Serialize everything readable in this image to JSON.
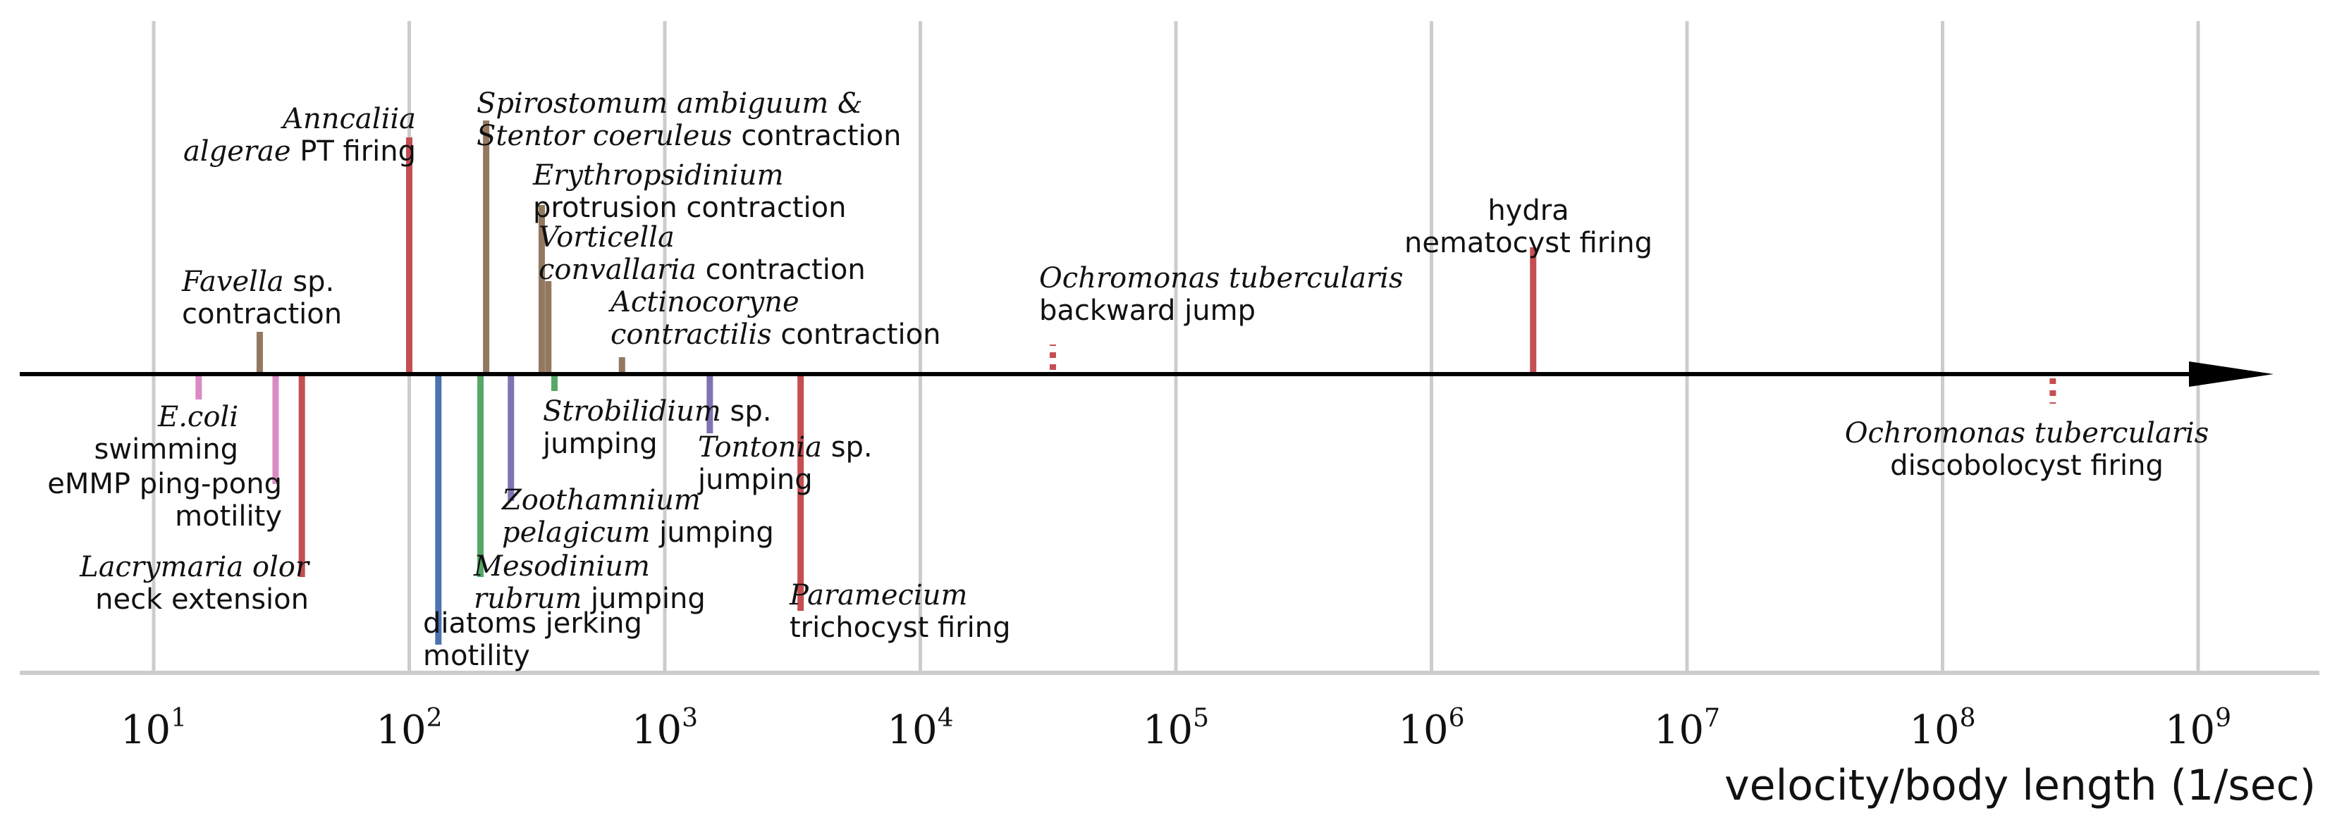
{
  "chart_data": {
    "type": "timeline",
    "scale": "log10",
    "xlim": [
      10,
      2000000000
    ],
    "xlabel": "velocity/body length (1/sec)",
    "ticks": [
      {
        "base": "10",
        "exp": "1",
        "value": 10
      },
      {
        "base": "10",
        "exp": "2",
        "value": 100
      },
      {
        "base": "10",
        "exp": "3",
        "value": 1000
      },
      {
        "base": "10",
        "exp": "4",
        "value": 10000
      },
      {
        "base": "10",
        "exp": "5",
        "value": 100000
      },
      {
        "base": "10",
        "exp": "6",
        "value": 1000000
      },
      {
        "base": "10",
        "exp": "7",
        "value": 10000000
      },
      {
        "base": "10",
        "exp": "8",
        "value": 100000000
      },
      {
        "base": "10",
        "exp": "9",
        "value": 1000000000
      }
    ],
    "grid": true,
    "colors": {
      "red": "#c44e52",
      "brown": "#937860",
      "pink": "#da8bc3",
      "blue": "#4c72b0",
      "green": "#55a868",
      "purple": "#8172b3",
      "grid": "#cccccc",
      "axis": "#000000"
    },
    "events": [
      {
        "id": "ecoli",
        "x": 15,
        "color": "pink",
        "side": "below",
        "magnitude": 0.15,
        "label_lines": [
          [
            {
              "t": "E.coli",
              "i": true
            }
          ],
          [
            {
              "t": "swimming",
              "i": false
            }
          ]
        ]
      },
      {
        "id": "emmp",
        "x": 30,
        "color": "pink",
        "side": "below",
        "magnitude": 0.65,
        "label_lines": [
          [
            {
              "t": "eMMP ping-pong",
              "i": false
            }
          ],
          [
            {
              "t": "motility",
              "i": false
            }
          ]
        ]
      },
      {
        "id": "lacrymaria",
        "x": 38,
        "color": "red",
        "side": "below",
        "magnitude": 1.2,
        "label_lines": [
          [
            {
              "t": "Lacrymaria olor",
              "i": true
            }
          ],
          [
            {
              "t": "neck extension",
              "i": false
            }
          ]
        ]
      },
      {
        "id": "favella",
        "x": 26,
        "color": "brown",
        "side": "above",
        "magnitude": 0.25,
        "label_lines": [
          [
            {
              "t": "Favella",
              "i": true
            },
            {
              "t": " sp.",
              "i": false
            }
          ],
          [
            {
              "t": "contraction",
              "i": false
            }
          ]
        ]
      },
      {
        "id": "anncaliia",
        "x": 100,
        "color": "red",
        "side": "above",
        "magnitude": 1.4,
        "label_lines": [
          [
            {
              "t": "Anncaliia",
              "i": true
            }
          ],
          [
            {
              "t": "algerae",
              "i": true
            },
            {
              "t": " PT firing",
              "i": false
            }
          ]
        ]
      },
      {
        "id": "diatoms",
        "x": 130,
        "color": "blue",
        "side": "below",
        "magnitude": 1.6,
        "label_lines": [
          [
            {
              "t": "diatoms jerking",
              "i": false
            }
          ],
          [
            {
              "t": "motility",
              "i": false
            }
          ]
        ]
      },
      {
        "id": "spirostomum",
        "x": 200,
        "color": "brown",
        "side": "above",
        "magnitude": 1.5,
        "label_lines": [
          [
            {
              "t": "Spirostomum ambiguum &",
              "i": true
            }
          ],
          [
            {
              "t": "Stentor coeruleus",
              "i": true
            },
            {
              "t": " contraction",
              "i": false
            }
          ]
        ]
      },
      {
        "id": "mesodinium",
        "x": 190,
        "color": "green",
        "side": "below",
        "magnitude": 1.2,
        "label_lines": [
          [
            {
              "t": "Mesodinium",
              "i": true
            }
          ],
          [
            {
              "t": "rubrum",
              "i": true
            },
            {
              "t": " jumping",
              "i": false
            }
          ]
        ]
      },
      {
        "id": "zoothamnium",
        "x": 250,
        "color": "purple",
        "side": "below",
        "magnitude": 0.75,
        "label_lines": [
          [
            {
              "t": "Zoothamnium",
              "i": true
            }
          ],
          [
            {
              "t": "pelagicum",
              "i": true
            },
            {
              "t": " jumping",
              "i": false
            }
          ]
        ]
      },
      {
        "id": "erythropsidinium",
        "x": 330,
        "color": "brown",
        "side": "above",
        "magnitude": 1.0,
        "label_lines": [
          [
            {
              "t": "Erythropsidinium",
              "i": true
            }
          ],
          [
            {
              "t": "protrusion contraction",
              "i": false
            }
          ]
        ]
      },
      {
        "id": "vorticella",
        "x": 350,
        "color": "brown",
        "side": "above",
        "magnitude": 0.55,
        "label_lines": [
          [
            {
              "t": "Vorticella",
              "i": true
            }
          ],
          [
            {
              "t": "convallaria",
              "i": true
            },
            {
              "t": " contraction",
              "i": false
            }
          ]
        ]
      },
      {
        "id": "strobilidium",
        "x": 370,
        "color": "green",
        "side": "below",
        "magnitude": 0.1,
        "label_lines": [
          [
            {
              "t": "Strobilidium",
              "i": true
            },
            {
              "t": " sp.",
              "i": false
            }
          ],
          [
            {
              "t": "jumping",
              "i": false
            }
          ]
        ]
      },
      {
        "id": "actinocoryne",
        "x": 680,
        "color": "brown",
        "side": "above",
        "magnitude": 0.1,
        "label_lines": [
          [
            {
              "t": "Actinocoryne",
              "i": true
            }
          ],
          [
            {
              "t": "contractilis",
              "i": true
            },
            {
              "t": " contraction",
              "i": false
            }
          ]
        ]
      },
      {
        "id": "tontonia",
        "x": 1500,
        "color": "purple",
        "side": "below",
        "magnitude": 0.35,
        "label_lines": [
          [
            {
              "t": "Tontonia",
              "i": true
            },
            {
              "t": " sp.",
              "i": false
            }
          ],
          [
            {
              "t": "jumping",
              "i": false
            }
          ]
        ]
      },
      {
        "id": "paramecium",
        "x": 3400,
        "color": "red",
        "side": "below",
        "magnitude": 1.4,
        "label_lines": [
          [
            {
              "t": "Paramecium",
              "i": true
            }
          ],
          [
            {
              "t": "trichocyst firing",
              "i": false
            }
          ]
        ]
      },
      {
        "id": "ochromonas-jump",
        "x": 33000,
        "color": "red",
        "side": "above",
        "magnitude": 0.15,
        "dotted": true,
        "label_lines": [
          [
            {
              "t": "Ochromonas tubercularis",
              "i": true
            }
          ],
          [
            {
              "t": "backward jump",
              "i": false
            }
          ]
        ]
      },
      {
        "id": "hydra",
        "x": 2500000,
        "color": "red",
        "side": "above",
        "magnitude": 0.75,
        "label_lines": [
          [
            {
              "t": "hydra",
              "i": false
            }
          ],
          [
            {
              "t": "nematocyst firing",
              "i": false
            }
          ]
        ]
      },
      {
        "id": "ochromonas-disco",
        "x": 270000000,
        "color": "red",
        "side": "below",
        "magnitude": 0.15,
        "dotted": true,
        "label_lines": [
          [
            {
              "t": "Ochromonas tubercularis",
              "i": true
            }
          ],
          [
            {
              "t": "discobolocyst firing",
              "i": false
            }
          ]
        ]
      }
    ]
  }
}
